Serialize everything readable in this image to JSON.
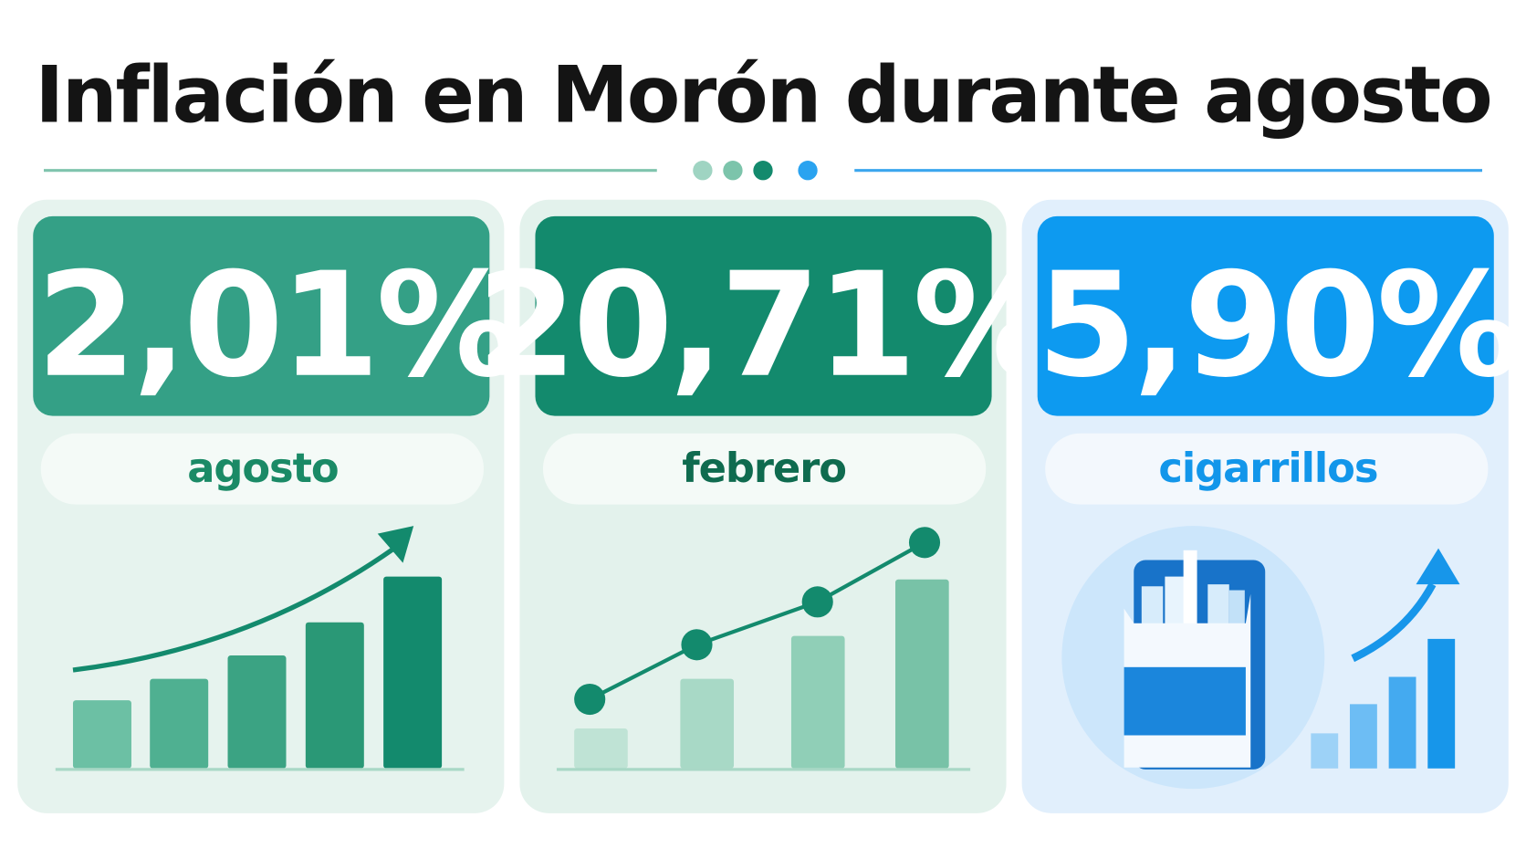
{
  "title": "Inflación en Morón durante agosto",
  "cards": [
    {
      "value": "2,01%",
      "label": "agosto"
    },
    {
      "value": "20,71%",
      "label": "febrero"
    },
    {
      "value": "5,90%",
      "label": "cigarrillos"
    }
  ]
}
